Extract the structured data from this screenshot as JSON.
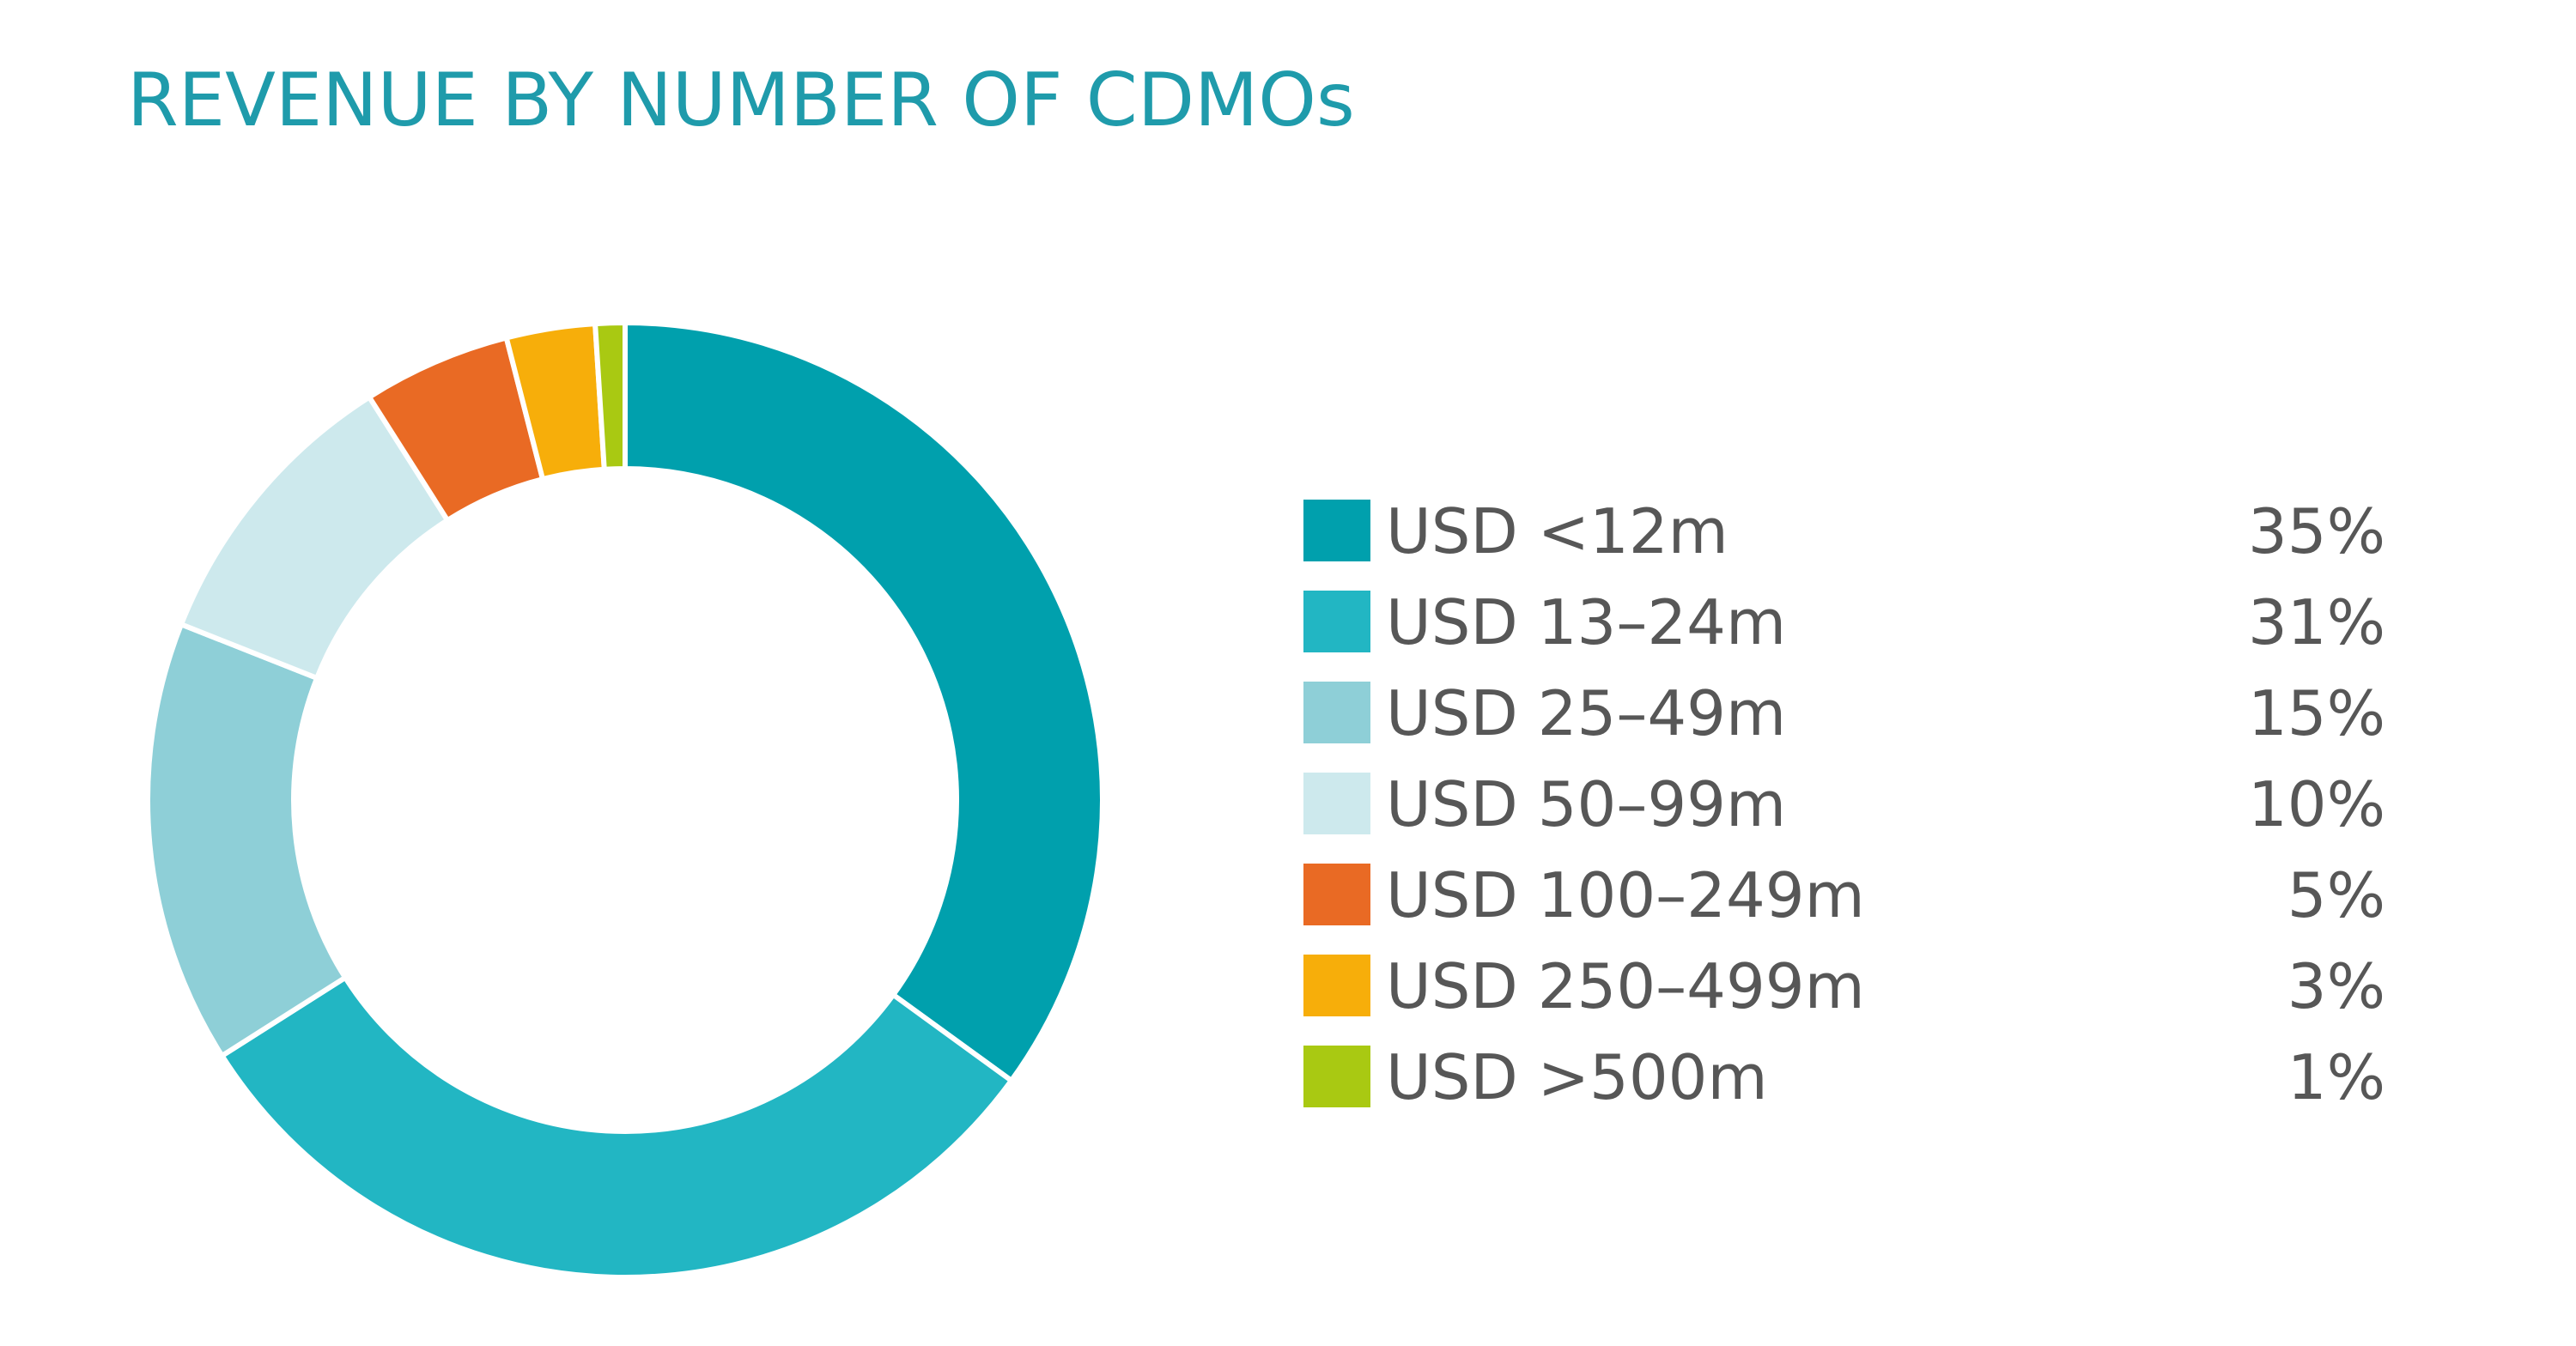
{
  "chart_data": {
    "type": "pie",
    "title": "REVENUE BY NUMBER OF CDMOs",
    "donut": true,
    "legend_position": "right",
    "slices": [
      {
        "label": "USD <12m",
        "value": 35,
        "display": "35%",
        "color": "#00a0ad"
      },
      {
        "label": "USD 13–24m",
        "value": 31,
        "display": "31%",
        "color": "#22b6c3"
      },
      {
        "label": "USD 25–49m",
        "value": 15,
        "display": "15%",
        "color": "#8ecfd7"
      },
      {
        "label": "USD 50–99m",
        "value": 10,
        "display": "10%",
        "color": "#cde9ed"
      },
      {
        "label": "USD 100–249m",
        "value": 5,
        "display": "5%",
        "color": "#e96a24"
      },
      {
        "label": "USD 250–499m",
        "value": 3,
        "display": "3%",
        "color": "#f7ae0a"
      },
      {
        "label": "USD >500m",
        "value": 1,
        "display": "1%",
        "color": "#a9c912"
      }
    ]
  }
}
